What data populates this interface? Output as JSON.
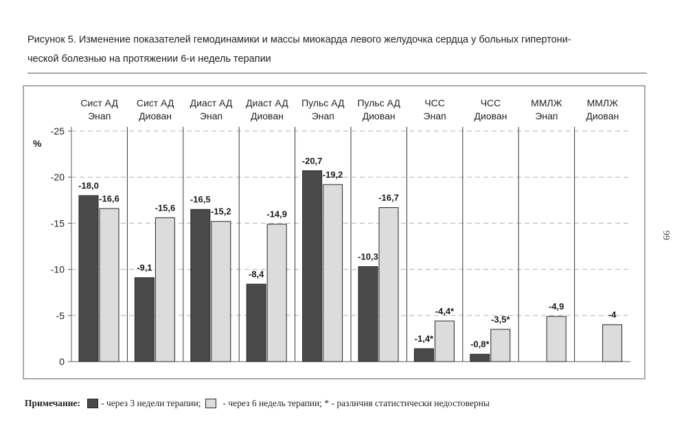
{
  "caption": {
    "line1": "Рисунок 5. Изменение показателей гемодинамики и массы миокарда левого желудочка сердца у больных гипертони-",
    "line2": "ческой болезнью на протяжении 6-и недель терапии"
  },
  "page_number": "99",
  "note": {
    "label": "Примечание:",
    "dark_text": "- через 3 недели терапии;",
    "light_text": "- через 6 недель терапии; * - различия статистически недостоверны"
  },
  "colors": {
    "series_3w": "#4a4a4a",
    "series_6w": "#dcdcdc",
    "grid": "#b0b0b0",
    "axis": "#555555"
  },
  "chart_data": {
    "type": "bar",
    "ylabel": "%",
    "ylim": [
      0,
      -25
    ],
    "y_axis_reversed": true,
    "yticks": [
      "-25",
      "-20",
      "-15",
      "-10",
      "-5",
      "0"
    ],
    "grid": true,
    "categories": [
      [
        "Сист АД",
        "Энап"
      ],
      [
        "Сист АД",
        "Диован"
      ],
      [
        "Диаст АД",
        "Энап"
      ],
      [
        "Диаст АД",
        "Диован"
      ],
      [
        "Пульс АД",
        "Энап"
      ],
      [
        "Пульс АД",
        "Диован"
      ],
      [
        "ЧСС",
        "Энап"
      ],
      [
        "ЧСС",
        "Диован"
      ],
      [
        "ММЛЖ",
        "Энап"
      ],
      [
        "ММЛЖ",
        "Диован"
      ]
    ],
    "series": [
      {
        "name": "через 3 недели терапии",
        "values": [
          -18.0,
          -9.1,
          -16.5,
          -8.4,
          -20.7,
          -10.3,
          -1.4,
          -0.8,
          null,
          null
        ],
        "labels": [
          "-18,0",
          "-9,1",
          "-16,5",
          "-8,4",
          "-20,7",
          "-10,3",
          "-1,4*",
          "-0,8*",
          "",
          ""
        ]
      },
      {
        "name": "через 6 недель терапии",
        "values": [
          -16.6,
          -15.6,
          -15.2,
          -14.9,
          -19.2,
          -16.7,
          -4.4,
          -3.5,
          -4.9,
          -4.0
        ],
        "labels": [
          "-16,6",
          "-15,6",
          "-15,2",
          "-14,9",
          "-19,2",
          "-16,7",
          "-4,4*",
          "-3,5*",
          "-4,9",
          "-4"
        ]
      }
    ]
  }
}
